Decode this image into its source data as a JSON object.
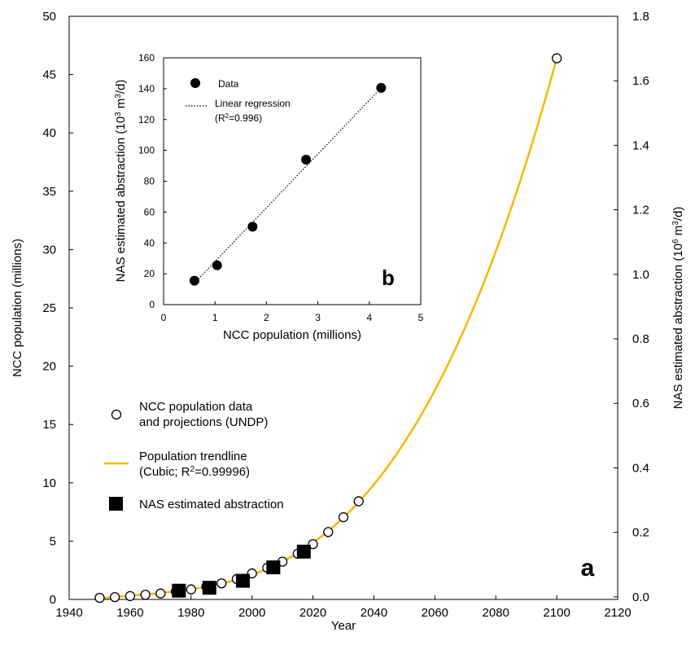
{
  "chart_data": [
    {
      "panel": "a",
      "type": "scatter",
      "xlabel": "Year",
      "ylabel": "NCC population (millions)",
      "y2label": "NAS estimated abstraction (10^6 m^3/d)",
      "xlim": [
        1940,
        2120
      ],
      "ylim": [
        0,
        50
      ],
      "y2lim": [
        -0.008,
        1.8
      ],
      "xticks": [
        1940,
        1960,
        1980,
        2000,
        2020,
        2040,
        2060,
        2080,
        2100,
        2120
      ],
      "yticks": [
        0,
        5,
        10,
        15,
        20,
        25,
        30,
        35,
        40,
        45,
        50
      ],
      "y2ticks": [
        "0.0",
        "0.2",
        "0.4",
        "0.6",
        "0.8",
        "1.0",
        "1.2",
        "1.4",
        "1.6",
        "1.8"
      ],
      "series": [
        {
          "name": "NCC population data and projections (UNDP)",
          "marker": "open-circle",
          "points": [
            [
              1950,
              0.14
            ],
            [
              1955,
              0.2
            ],
            [
              1960,
              0.29
            ],
            [
              1965,
              0.4
            ],
            [
              1970,
              0.51
            ],
            [
              1975,
              0.68
            ],
            [
              1980,
              0.86
            ],
            [
              1985,
              1.09
            ],
            [
              1990,
              1.38
            ],
            [
              1995,
              1.75
            ],
            [
              2000,
              2.23
            ],
            [
              2005,
              2.71
            ],
            [
              2010,
              3.24
            ],
            [
              2015,
              3.92
            ],
            [
              2020,
              4.74
            ],
            [
              2025,
              5.78
            ],
            [
              2030,
              7.05
            ],
            [
              2035,
              8.42
            ],
            [
              2100,
              46.4
            ]
          ]
        },
        {
          "name": "Population trendline",
          "detail": "(Cubic; R",
          "r2": "=0.99996)",
          "type": "line",
          "color": "#f5b800",
          "x_range": [
            1950,
            2100
          ]
        },
        {
          "name": "NAS estimated abstraction",
          "marker": "filled-square",
          "points": [
            [
              1976,
              0.75
            ],
            [
              1986,
              1.0
            ],
            [
              1997,
              1.6
            ],
            [
              2007,
              2.75
            ],
            [
              2017,
              4.1
            ]
          ]
        }
      ],
      "panel_label": "a"
    },
    {
      "panel": "b",
      "type": "scatter",
      "xlabel": "NCC population (millions)",
      "ylabel": "NAS estimated abstraction (10^3 m^3/d)",
      "xlim": [
        0,
        5
      ],
      "ylim": [
        0,
        160
      ],
      "xticks": [
        0,
        1,
        2,
        3,
        4,
        5
      ],
      "yticks": [
        0,
        20,
        40,
        60,
        80,
        100,
        120,
        140,
        160
      ],
      "series": [
        {
          "name": "Data",
          "marker": "filled-circle",
          "x": [
            0.6,
            1.04,
            1.73,
            2.77,
            4.23
          ],
          "y": [
            15.5,
            25.5,
            50.5,
            94,
            140.5
          ]
        },
        {
          "name": "Linear regression",
          "r2": "(R=0.996)",
          "type": "line",
          "style": "dotted",
          "x_range": [
            0.6,
            4.23
          ],
          "y_range": [
            14,
            140.5
          ]
        }
      ],
      "panel_label": "b"
    }
  ],
  "legend": {
    "population": "NCC population data",
    "population2": "and projections (UNDP)",
    "trend": "Population trendline",
    "trend2a": "(Cubic; R",
    "trend2b": "2",
    "trend2c": "=0.99996)",
    "nas": "NAS estimated abstraction"
  },
  "inset_legend": {
    "data": "Data",
    "reg": "Linear regression",
    "reg2a": "(R",
    "reg2b": "2",
    "reg2c": "=0.996)"
  },
  "labels": {
    "year": "Year",
    "ncc_pop": "NCC population (millions)",
    "nas_right_a": "NAS estimated abstraction (10",
    "nas_right_b": "6",
    "nas_right_c": " m",
    "nas_right_d": "3",
    "nas_right_e": "/d)",
    "inset_y_a": "NAS estimated abstraction (10",
    "inset_y_b": "3",
    "inset_y_c": " m",
    "inset_y_d": "3",
    "inset_y_e": "/d)",
    "inset_x": "NCC population (millions)",
    "panel_a": "a",
    "panel_b": "b"
  },
  "colors": {
    "trendline": "#f5b800",
    "axis": "#000000"
  }
}
